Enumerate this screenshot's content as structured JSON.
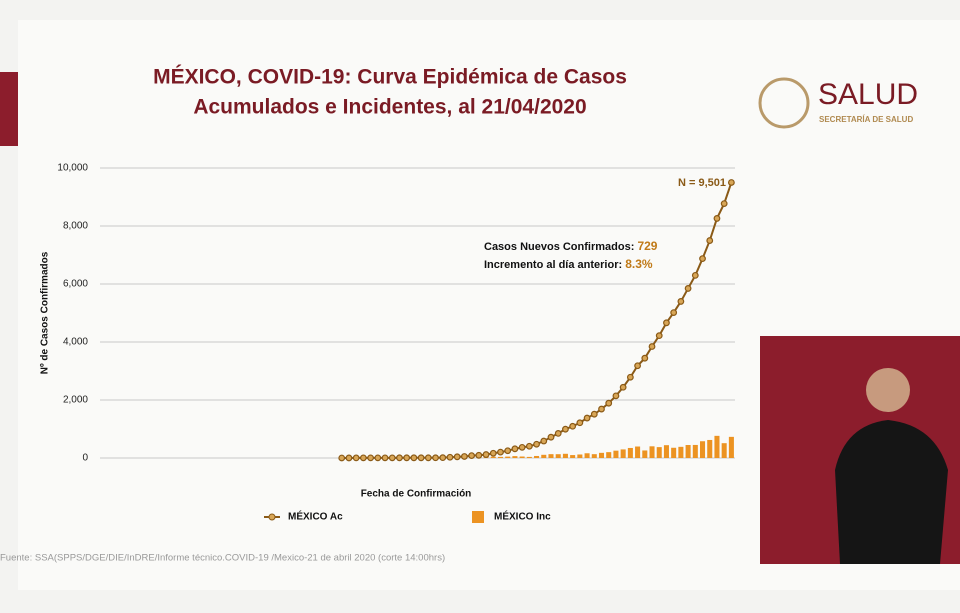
{
  "chart_data": {
    "type": "bar-line",
    "title": [
      "MÉXICO, COVID-19: Curva Epidémica de Casos",
      "Acumulados e Incidentes, al 21/04/2020"
    ],
    "brand": "SALUD",
    "brand_subtitle": "SECRETARÍA DE SALUD",
    "y_label": "Nº de Casos Confirmados",
    "x_label": "Fecha de Confirmación",
    "annotations": [
      "N = 9,501",
      "Casos Nuevos Confirmados:",
      "729",
      "Incremento al día anterior:",
      "8.3%"
    ],
    "source": "Fuente: SSA(SPPS/DGE/DIE/InDRE/Informe técnico.COVID-19 /Mexico-21 de abril 2020 (corte 14:00hrs)",
    "ylim": [
      0,
      10000
    ],
    "yticks": [
      {
        "value": 0,
        "label": "0"
      },
      {
        "value": 2000,
        "label": "2,000"
      },
      {
        "value": 4000,
        "label": "4,000"
      },
      {
        "value": 6000,
        "label": "6,000"
      },
      {
        "value": 8000,
        "label": "8,000"
      },
      {
        "value": 10000,
        "label": "10,000"
      }
    ],
    "grid": true,
    "categories": [
      null,
      null,
      null,
      null,
      null,
      null,
      null,
      null,
      null,
      null,
      null,
      null,
      null,
      null,
      null,
      null,
      null,
      null,
      null,
      null,
      null,
      null,
      null,
      null,
      null,
      null,
      null,
      null,
      null,
      null,
      null,
      null,
      null,
      null,
      null,
      null,
      null,
      null,
      null,
      null,
      null,
      null,
      null,
      null,
      null,
      null,
      null,
      null,
      null,
      null,
      null,
      null,
      null,
      null,
      null,
      null,
      null,
      null,
      null,
      null,
      null,
      null,
      null,
      null,
      null,
      null,
      null,
      null,
      null,
      null,
      null,
      null,
      null,
      null,
      null,
      null,
      null,
      null,
      null,
      null,
      null,
      null,
      null,
      null,
      null,
      null,
      null,
      null
    ],
    "series": [
      {
        "name": "MÉXICO Ac",
        "kind": "line",
        "color": "#8a5a17",
        "values": [
          null,
          null,
          null,
          null,
          null,
          null,
          null,
          null,
          null,
          null,
          null,
          null,
          null,
          null,
          null,
          null,
          null,
          null,
          null,
          null,
          null,
          null,
          null,
          null,
          null,
          null,
          null,
          null,
          null,
          null,
          null,
          null,
          null,
          1,
          2,
          4,
          5,
          5,
          5,
          5,
          5,
          6,
          7,
          7,
          7,
          7,
          8,
          12,
          26,
          41,
          53,
          82,
          93,
          118,
          164,
          203,
          251,
          316,
          367,
          405,
          475,
          585,
          717,
          848,
          993,
          1094,
          1215,
          1378,
          1510,
          1688,
          1890,
          2143,
          2439,
          2785,
          3181,
          3441,
          3844,
          4219,
          4661,
          5014,
          5399,
          5847,
          6297,
          6875,
          7497,
          8261,
          8772,
          9501
        ]
      },
      {
        "name": "MÉXICO Inc",
        "kind": "bar",
        "color": "#ec9322",
        "values": [
          null,
          null,
          null,
          null,
          null,
          null,
          null,
          null,
          null,
          null,
          null,
          null,
          null,
          null,
          null,
          null,
          null,
          null,
          null,
          null,
          null,
          null,
          null,
          null,
          null,
          null,
          null,
          null,
          null,
          null,
          null,
          null,
          null,
          1,
          1,
          2,
          1,
          0,
          0,
          0,
          0,
          1,
          1,
          0,
          0,
          0,
          1,
          4,
          14,
          15,
          12,
          29,
          11,
          25,
          46,
          39,
          48,
          65,
          51,
          38,
          70,
          110,
          132,
          131,
          145,
          101,
          121,
          163,
          132,
          178,
          202,
          253,
          296,
          346,
          396,
          260,
          403,
          375,
          442,
          353,
          385,
          448,
          450,
          578,
          622,
          764,
          511,
          729
        ]
      }
    ]
  }
}
